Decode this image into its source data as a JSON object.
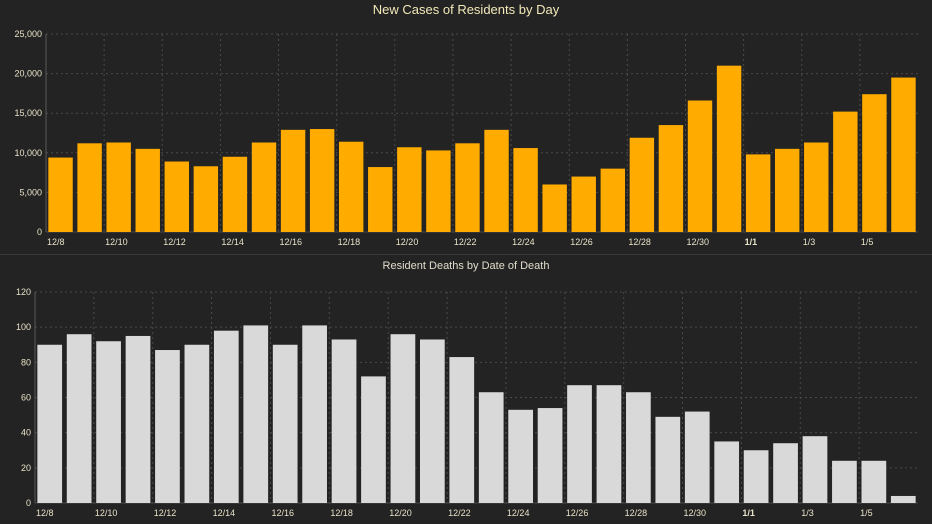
{
  "colors": {
    "background": "#232323",
    "cases_bar": "#ffab00",
    "deaths_bar": "#d9d9d9",
    "grid": "#4a4a4a",
    "tick_text": "#e8e2c8"
  },
  "chart_data": [
    {
      "type": "bar",
      "title": "New Cases of Residents by Day",
      "categories": [
        "12/8",
        "12/9",
        "12/10",
        "12/11",
        "12/12",
        "12/13",
        "12/14",
        "12/15",
        "12/16",
        "12/17",
        "12/18",
        "12/19",
        "12/20",
        "12/21",
        "12/22",
        "12/23",
        "12/24",
        "12/25",
        "12/26",
        "12/27",
        "12/28",
        "12/29",
        "12/30",
        "12/31",
        "1/1",
        "1/2",
        "1/3",
        "1/4",
        "1/5",
        "1/6"
      ],
      "values": [
        9400,
        11200,
        11300,
        10500,
        8900,
        8300,
        9500,
        11300,
        12900,
        13000,
        11400,
        8200,
        10700,
        10300,
        11200,
        12900,
        10600,
        6000,
        7000,
        8000,
        11900,
        13500,
        16600,
        21000,
        9800,
        10500,
        11300,
        15200,
        17400,
        19500
      ],
      "tick_labels": [
        "12/8",
        "12/10",
        "12/12",
        "12/14",
        "12/16",
        "12/18",
        "12/20",
        "12/22",
        "12/24",
        "12/26",
        "12/28",
        "12/30",
        "1/1",
        "1/3",
        "1/5"
      ],
      "ylim": [
        0,
        25000
      ],
      "yticks": [
        "0",
        "5,000",
        "10,000",
        "15,000",
        "20,000",
        "25,000"
      ],
      "ytick_values": [
        0,
        5000,
        10000,
        15000,
        20000,
        25000
      ],
      "xlabel": "",
      "ylabel": "",
      "grid": true
    },
    {
      "type": "bar",
      "title": "Resident Deaths by Date of Death",
      "categories": [
        "12/8",
        "12/9",
        "12/10",
        "12/11",
        "12/12",
        "12/13",
        "12/14",
        "12/15",
        "12/16",
        "12/17",
        "12/18",
        "12/19",
        "12/20",
        "12/21",
        "12/22",
        "12/23",
        "12/24",
        "12/25",
        "12/26",
        "12/27",
        "12/28",
        "12/29",
        "12/30",
        "12/31",
        "1/1",
        "1/2",
        "1/3",
        "1/4",
        "1/5",
        "1/6"
      ],
      "values": [
        90,
        96,
        92,
        95,
        87,
        90,
        98,
        101,
        90,
        101,
        93,
        72,
        96,
        93,
        83,
        63,
        53,
        54,
        67,
        67,
        63,
        49,
        52,
        35,
        30,
        34,
        38,
        24,
        24,
        4
      ],
      "tick_labels": [
        "12/8",
        "12/10",
        "12/12",
        "12/14",
        "12/16",
        "12/18",
        "12/20",
        "12/22",
        "12/24",
        "12/26",
        "12/28",
        "12/30",
        "1/1",
        "1/3",
        "1/5"
      ],
      "ylim": [
        0,
        120
      ],
      "yticks": [
        "0",
        "20",
        "40",
        "60",
        "80",
        "100",
        "120"
      ],
      "ytick_values": [
        0,
        20,
        40,
        60,
        80,
        100,
        120
      ],
      "xlabel": "",
      "ylabel": "",
      "grid": true
    }
  ]
}
